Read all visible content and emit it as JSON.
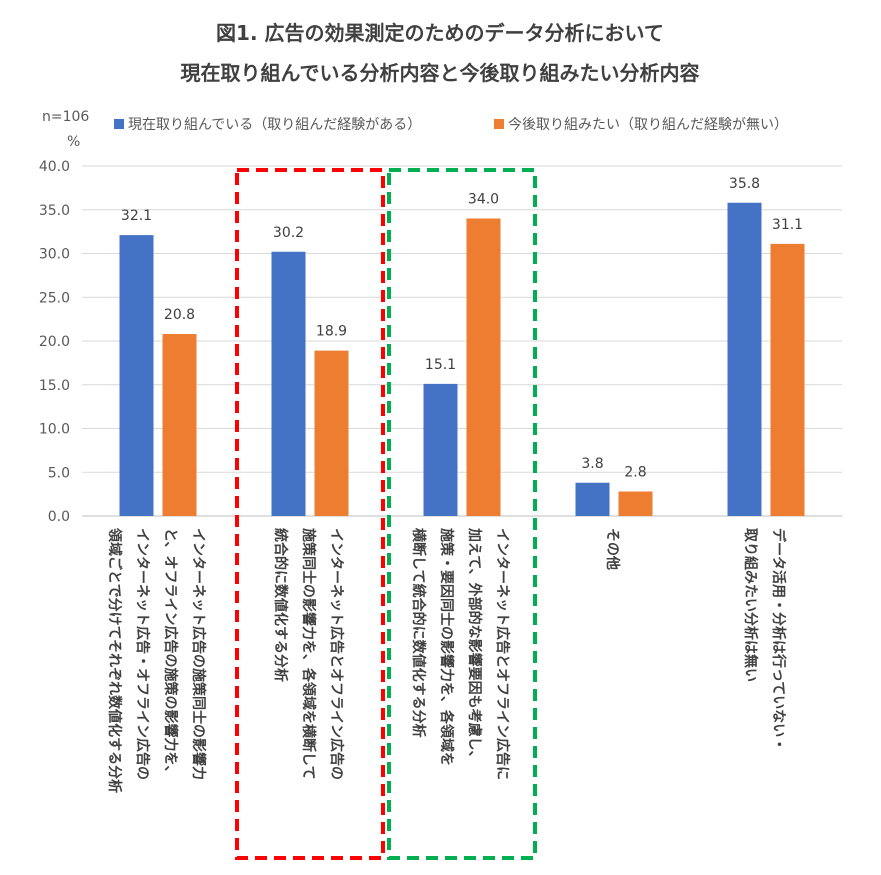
{
  "chart_data": {
    "type": "bar",
    "title_lines": [
      "図1. 広告の効果測定のためのデータ分析において",
      "現在取り組んでいる分析内容と今後取り組みたい分析内容"
    ],
    "sample_size": "n=106",
    "unit": "%",
    "ylim": [
      0,
      40
    ],
    "yticks": [
      "0.0",
      "5.0",
      "10.0",
      "15.0",
      "20.0",
      "25.0",
      "30.0",
      "35.0",
      "40.0"
    ],
    "grid": true,
    "legend_position": "top",
    "categories": [
      [
        "インターネット広告の施策同士の影響力",
        "と、オフライン広告の施策の影響力を、",
        "インターネット広告・オフライン広告の",
        "領域ごとで分けてそれぞれ数値化する分析"
      ],
      [
        "インターネット広告とオフライン広告の",
        "施策同士の影響力を、各領域を横断して",
        "統合的に数値化する分析"
      ],
      [
        "インターネット広告とオフライン広告に",
        "加えて、外部的な影響要因も考慮し、",
        "施策・要因同士の影響力を、各領域を",
        "横断して統合的に数値化する分析"
      ],
      [
        "その他"
      ],
      [
        "データ活用・分析は行っていない・",
        "取り組みたい分析は無い"
      ]
    ],
    "series": [
      {
        "name": "現在取り組んでいる（取り組んだ経験がある）",
        "color": "#4472C4",
        "values": [
          32.1,
          30.2,
          15.1,
          3.8,
          35.8
        ],
        "labels": [
          "32.1",
          "30.2",
          "15.1",
          "3.8",
          "35.8"
        ]
      },
      {
        "name": "今後取り組みたい（取り組んだ経験が無い）",
        "color": "#ED7D31",
        "values": [
          20.8,
          18.9,
          34.0,
          2.8,
          31.1
        ],
        "labels": [
          "20.8",
          "18.9",
          "34.0",
          "2.8",
          "31.1"
        ]
      }
    ],
    "highlight_boxes": [
      {
        "category_index": 1,
        "color": "#FF0000",
        "style": "dashed"
      },
      {
        "category_index": 2,
        "color": "#00B050",
        "style": "dashed"
      }
    ]
  }
}
